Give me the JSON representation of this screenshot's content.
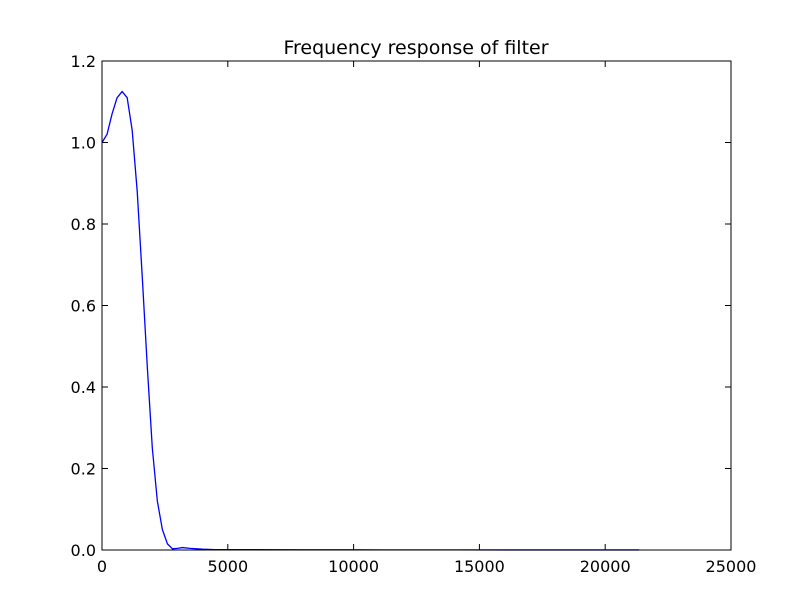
{
  "chart_data": {
    "type": "line",
    "title": "Frequency response of filter",
    "xlabel": "",
    "ylabel": "",
    "xlim": [
      0,
      25000
    ],
    "ylim": [
      0.0,
      1.2
    ],
    "x_ticks": [
      "0",
      "5000",
      "10000",
      "15000",
      "20000",
      "25000"
    ],
    "y_ticks": [
      "0.0",
      "0.2",
      "0.4",
      "0.6",
      "0.8",
      "1.0",
      "1.2"
    ],
    "grid": false,
    "legend": "none",
    "series": [
      {
        "color": "#0000ff",
        "x": [
          0,
          200,
          400,
          600,
          800,
          1000,
          1200,
          1400,
          1600,
          1800,
          2000,
          2200,
          2400,
          2600,
          2800,
          3000,
          3200,
          3500,
          4000,
          4500,
          5000,
          6000,
          8000,
          10000,
          12000,
          14000,
          16000,
          18000,
          20000,
          21350
        ],
        "y": [
          1.0,
          1.02,
          1.07,
          1.11,
          1.125,
          1.11,
          1.03,
          0.88,
          0.67,
          0.45,
          0.25,
          0.12,
          0.05,
          0.015,
          0.003,
          0.004,
          0.006,
          0.004,
          0.002,
          0.001,
          0.001,
          0.001,
          0.0005,
          0.0005,
          0.0003,
          0.0003,
          0.0002,
          0.0002,
          0.0001,
          0.0001
        ]
      }
    ]
  }
}
